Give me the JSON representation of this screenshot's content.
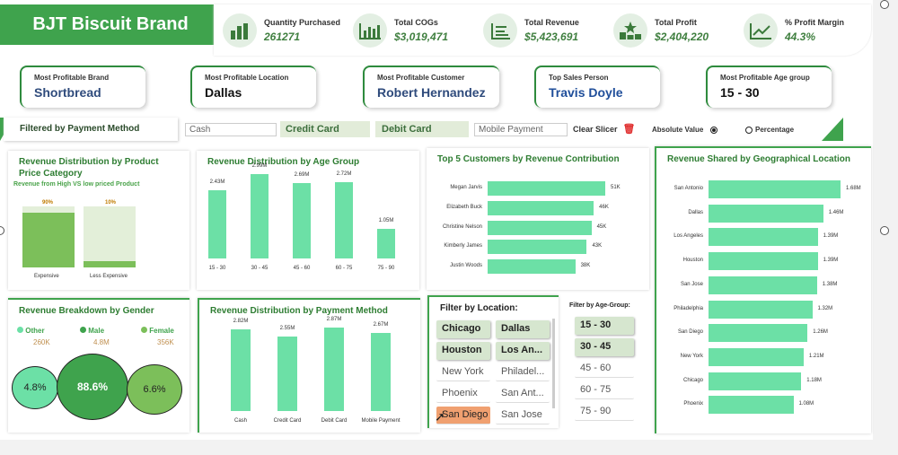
{
  "brand": "BJT Biscuit Brand",
  "kpis": [
    {
      "label": "Quantity Purchased",
      "value": "261271",
      "icon": "bar-chart-icon"
    },
    {
      "label": "Total COGs",
      "value": "$3,019,471",
      "icon": "column-chart-icon"
    },
    {
      "label": "Total Revenue",
      "value": "$5,423,691",
      "icon": "report-icon"
    },
    {
      "label": "Total Profit",
      "value": "$2,404,220",
      "icon": "podium-star-icon"
    },
    {
      "label": "% Profit Margin",
      "value": "44.3%",
      "icon": "trend-line-icon"
    }
  ],
  "cards": [
    {
      "label": "Most Profitable Brand",
      "value": "Shortbread"
    },
    {
      "label": "Most Profitable Location",
      "value": "Dallas"
    },
    {
      "label": "Most Profitable Customer",
      "value": "Robert Hernandez"
    },
    {
      "label": "Top Sales Person",
      "value": "Travis Doyle"
    },
    {
      "label": "Most Profitable Age group",
      "value": "15 - 30"
    }
  ],
  "payment_filter": {
    "title": "Filtered by Payment Method",
    "options": [
      "Cash",
      "Credit Card",
      "Debit Card",
      "Mobile Payment"
    ],
    "clear": "Clear Slicer",
    "absolute": "Absolute Value",
    "percentage": "Percentage"
  },
  "category": {
    "title": "Revenue Distribution by Product Price Category",
    "subtitle": "Revenue from High VS low priced Product",
    "items": [
      {
        "name": "Expensive",
        "pct": "90%",
        "value": 0.9
      },
      {
        "name": "Less Expensive",
        "pct": "10%",
        "value": 0.1
      }
    ]
  },
  "age": {
    "title": "Revenue Distribution by Age Group",
    "items": [
      {
        "name": "15 - 30",
        "label": "2.43M",
        "value": 2.43
      },
      {
        "name": "30 - 45",
        "label": "2.99M",
        "value": 2.99
      },
      {
        "name": "45 - 60",
        "label": "2.69M",
        "value": 2.69
      },
      {
        "name": "60 - 75",
        "label": "2.72M",
        "value": 2.72
      },
      {
        "name": "75 - 90",
        "label": "1.05M",
        "value": 1.05
      }
    ]
  },
  "customers": {
    "title": "Top 5 Customers by Revenue Contribution",
    "items": [
      {
        "name": "Megan Jarvis",
        "label": "51K",
        "value": 51
      },
      {
        "name": "Elizabeth Buck",
        "label": "46K",
        "value": 46
      },
      {
        "name": "Christine Nelson",
        "label": "45K",
        "value": 45
      },
      {
        "name": "Kimberly James",
        "label": "43K",
        "value": 43
      },
      {
        "name": "Justin Woods",
        "label": "38K",
        "value": 38
      }
    ]
  },
  "geo": {
    "title": "Revenue Shared by Geographical Location",
    "items": [
      {
        "name": "San Antonio",
        "label": "1.68M",
        "value": 1.68
      },
      {
        "name": "Dallas",
        "label": "1.46M",
        "value": 1.46
      },
      {
        "name": "Los Angeles",
        "label": "1.39M",
        "value": 1.39
      },
      {
        "name": "Houston",
        "label": "1.39M",
        "value": 1.39
      },
      {
        "name": "San Jose",
        "label": "1.38M",
        "value": 1.38
      },
      {
        "name": "Philadelphia",
        "label": "1.32M",
        "value": 1.32
      },
      {
        "name": "San Diego",
        "label": "1.26M",
        "value": 1.26
      },
      {
        "name": "New York",
        "label": "1.21M",
        "value": 1.21
      },
      {
        "name": "Chicago",
        "label": "1.18M",
        "value": 1.18
      },
      {
        "name": "Phoenix",
        "label": "1.08M",
        "value": 1.08
      }
    ]
  },
  "gender": {
    "title": "Revenue Breakdown by Gender",
    "items": [
      {
        "name": "Other",
        "amount": "260K",
        "pct": "4.8%",
        "color": "#6ce0a6"
      },
      {
        "name": "Male",
        "amount": "4.8M",
        "pct": "88.6%",
        "color": "#3fa34d"
      },
      {
        "name": "Female",
        "amount": "356K",
        "pct": "6.6%",
        "color": "#7cbf5a"
      }
    ]
  },
  "payment": {
    "title": "Revenue Distribution by Payment Method",
    "items": [
      {
        "name": "Cash",
        "label": "2.82M",
        "value": 2.82
      },
      {
        "name": "Credit Card",
        "label": "2.55M",
        "value": 2.55
      },
      {
        "name": "Debit Card",
        "label": "2.87M",
        "value": 2.87
      },
      {
        "name": "Mobile Payment",
        "label": "2.67M",
        "value": 2.67
      }
    ]
  },
  "location_filter": {
    "title": "Filter by Location:",
    "items": [
      {
        "name": "Chicago",
        "on": true
      },
      {
        "name": "Dallas",
        "on": true
      },
      {
        "name": "Houston",
        "on": true
      },
      {
        "name": "Los An...",
        "on": true
      },
      {
        "name": "New York",
        "on": false
      },
      {
        "name": "Philadel...",
        "on": false
      },
      {
        "name": "Phoenix",
        "on": false
      },
      {
        "name": "San Ant...",
        "on": false
      },
      {
        "name": "San Diego",
        "on": false,
        "hover": true
      },
      {
        "name": "San Jose",
        "on": false
      }
    ]
  },
  "age_filter": {
    "title": "Filter by Age-Group:",
    "items": [
      {
        "name": "15 - 30",
        "on": true
      },
      {
        "name": "30 - 45",
        "on": true
      },
      {
        "name": "45 - 60",
        "on": false
      },
      {
        "name": "60 - 75",
        "on": false
      },
      {
        "name": "75 - 90",
        "on": false
      }
    ]
  }
}
